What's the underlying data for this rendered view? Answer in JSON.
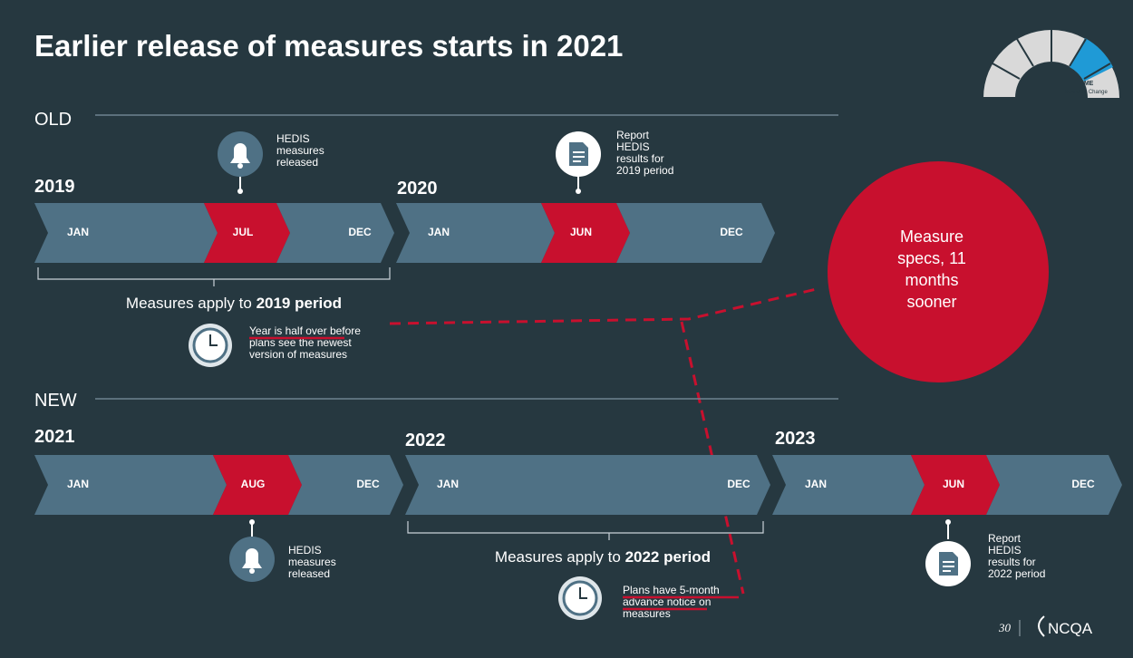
{
  "title": "Earlier release of measures starts in 2021",
  "badge": {
    "title": "TIME",
    "subtitle": "Schedule Change"
  },
  "old": {
    "label": "OLD",
    "years": [
      "2019",
      "2020"
    ],
    "months": [
      "JAN",
      "JUL",
      "DEC",
      "JAN",
      "JUN",
      "DEC"
    ],
    "release_note": [
      "HEDIS",
      "measures",
      "released"
    ],
    "report_note": [
      "Report",
      "HEDIS",
      "results for",
      "2019 period"
    ],
    "period_label": {
      "text": "Measures apply to",
      "bold": "2019 period"
    },
    "clock_note": [
      "Year is half over before",
      "plans see the newest",
      "version of measures"
    ]
  },
  "callout": [
    "Measure",
    "specs, 11",
    "months",
    "sooner"
  ],
  "new": {
    "label": "NEW",
    "years": [
      "2021",
      "2022",
      "2023"
    ],
    "months": [
      "JAN",
      "AUG",
      "DEC",
      "JAN",
      "DEC",
      "JAN",
      "JUN",
      "DEC"
    ],
    "release_note": [
      "HEDIS",
      "measures",
      "released"
    ],
    "report_note": [
      "Report",
      "HEDIS",
      "results for",
      "2022 period"
    ],
    "period_label": {
      "text": "Measures apply to",
      "bold": "2022 period"
    },
    "clock_note": [
      "Plans have 5-month",
      "advance notice on",
      "measures"
    ]
  },
  "footer": {
    "page": "30",
    "logo": "NCQA"
  }
}
